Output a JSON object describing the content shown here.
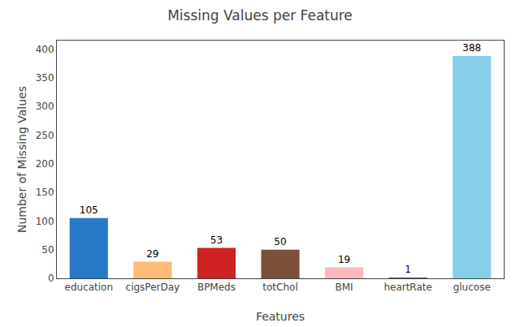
{
  "chart_data": {
    "type": "bar",
    "title": "Missing Values per Feature",
    "xlabel": "Features",
    "ylabel": "Number of Missing Values",
    "categories": [
      "education",
      "cigsPerDay",
      "BPMeds",
      "totChol",
      "BMI",
      "heartRate",
      "glucose"
    ],
    "values": [
      105,
      29,
      53,
      50,
      19,
      1,
      388
    ],
    "colors": [
      "#2878C8",
      "#FFBB77",
      "#CC2222",
      "#7B4F3A",
      "#FFB6C1",
      "#555555",
      "#87CEEB"
    ],
    "ylim": [
      0,
      415
    ],
    "yticks": [
      0,
      50,
      100,
      150,
      200,
      250,
      300,
      350,
      400
    ],
    "grid": false,
    "data_labels": true
  }
}
